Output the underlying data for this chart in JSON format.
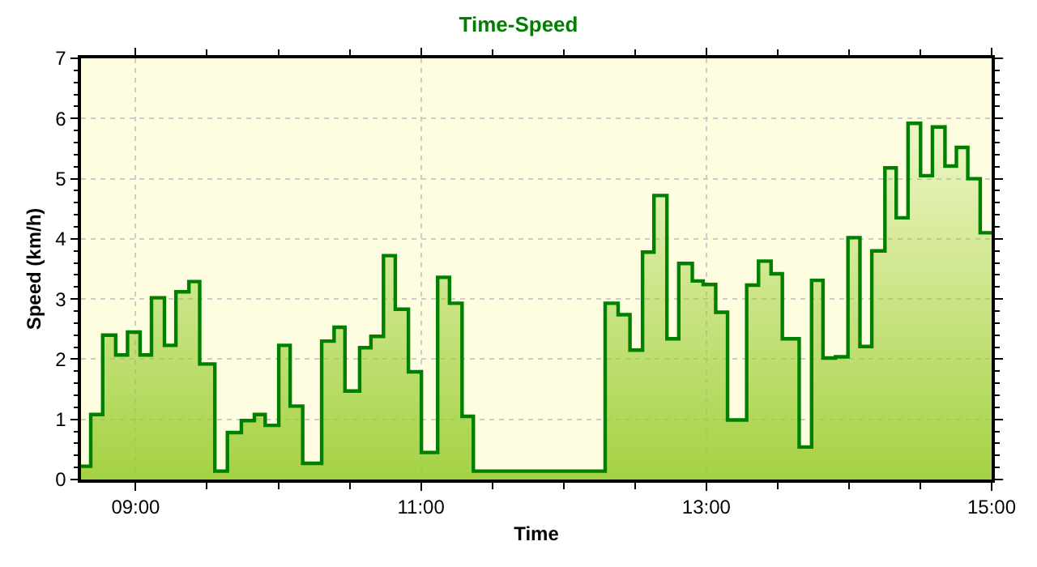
{
  "chart_data": {
    "type": "area",
    "title": "Time-Speed",
    "xlabel": "Time",
    "ylabel": "Speed (km/h)",
    "x": [
      8.617,
      8.685,
      8.685,
      8.769,
      8.769,
      8.86,
      8.86,
      8.943,
      8.943,
      9.031,
      9.031,
      9.111,
      9.111,
      9.202,
      9.202,
      9.282,
      9.282,
      9.373,
      9.373,
      9.449,
      9.449,
      9.555,
      9.555,
      9.643,
      9.643,
      9.741,
      9.741,
      9.832,
      9.832,
      9.908,
      9.908,
      10.003,
      10.003,
      10.083,
      10.083,
      10.171,
      10.171,
      10.304,
      10.304,
      10.391,
      10.391,
      10.467,
      10.467,
      10.57,
      10.57,
      10.649,
      10.649,
      10.737,
      10.737,
      10.82,
      10.82,
      10.912,
      10.912,
      11.003,
      11.003,
      11.117,
      11.117,
      11.2,
      11.2,
      11.288,
      11.288,
      11.367,
      11.367,
      12.291,
      12.291,
      12.382,
      12.382,
      12.465,
      12.465,
      12.553,
      12.553,
      12.633,
      12.633,
      12.724,
      12.724,
      12.807,
      12.807,
      12.902,
      12.902,
      12.978,
      12.978,
      13.066,
      13.066,
      13.149,
      13.149,
      13.283,
      13.283,
      13.366,
      13.366,
      13.454,
      13.454,
      13.533,
      13.533,
      13.651,
      13.651,
      13.738,
      13.738,
      13.818,
      13.818,
      13.906,
      13.906,
      13.993,
      13.993,
      14.077,
      14.077,
      14.16,
      14.16,
      14.252,
      14.252,
      14.331,
      14.331,
      14.414,
      14.414,
      14.502,
      14.502,
      14.585,
      14.585,
      14.673,
      14.673,
      14.753,
      14.753,
      14.833,
      14.833,
      14.92,
      14.92,
      15.0
    ],
    "series": [
      {
        "color": "#008000",
        "values": [
          0.22,
          0.22,
          1.08,
          1.08,
          2.4,
          2.4,
          2.07,
          2.07,
          2.45,
          2.45,
          2.07,
          2.07,
          3.02,
          3.02,
          2.23,
          2.23,
          3.12,
          3.12,
          3.29,
          3.29,
          1.92,
          1.92,
          0.14,
          0.14,
          0.78,
          0.78,
          0.98,
          0.98,
          1.08,
          1.08,
          0.9,
          0.9,
          2.23,
          2.23,
          1.22,
          1.22,
          0.27,
          0.27,
          2.3,
          2.3,
          2.53,
          2.53,
          1.47,
          1.47,
          2.19,
          2.19,
          2.38,
          2.38,
          3.72,
          3.72,
          2.83,
          2.83,
          1.79,
          1.79,
          0.45,
          0.45,
          3.36,
          3.36,
          2.93,
          2.93,
          1.05,
          1.05,
          0.14,
          0.14,
          2.93,
          2.93,
          2.74,
          2.74,
          2.15,
          2.15,
          3.78,
          3.78,
          4.72,
          4.72,
          2.34,
          2.34,
          3.59,
          3.59,
          3.3,
          3.3,
          3.24,
          3.24,
          2.78,
          2.78,
          0.99,
          0.99,
          3.23,
          3.23,
          3.63,
          3.63,
          3.42,
          3.42,
          2.34,
          2.34,
          0.54,
          0.54,
          3.31,
          3.31,
          2.02,
          2.02,
          2.04,
          2.04,
          4.02,
          4.02,
          2.21,
          2.21,
          3.8,
          3.8,
          5.18,
          5.18,
          4.35,
          4.35,
          5.92,
          5.92,
          5.05,
          5.05,
          5.86,
          5.86,
          5.21,
          5.21,
          5.52,
          5.52,
          5.0,
          5.0,
          4.1,
          4.1
        ]
      }
    ],
    "xlim": [
      8.617,
      15.0
    ],
    "xticks": [
      {
        "value": 9,
        "label": "09:00"
      },
      {
        "value": 11,
        "label": "11:00"
      },
      {
        "value": 13,
        "label": "13:00"
      },
      {
        "value": 15,
        "label": "15:00"
      }
    ],
    "ylim": [
      0,
      7
    ],
    "yticks": [
      0,
      1,
      2,
      3,
      4,
      5,
      6,
      7
    ],
    "grid": true
  }
}
